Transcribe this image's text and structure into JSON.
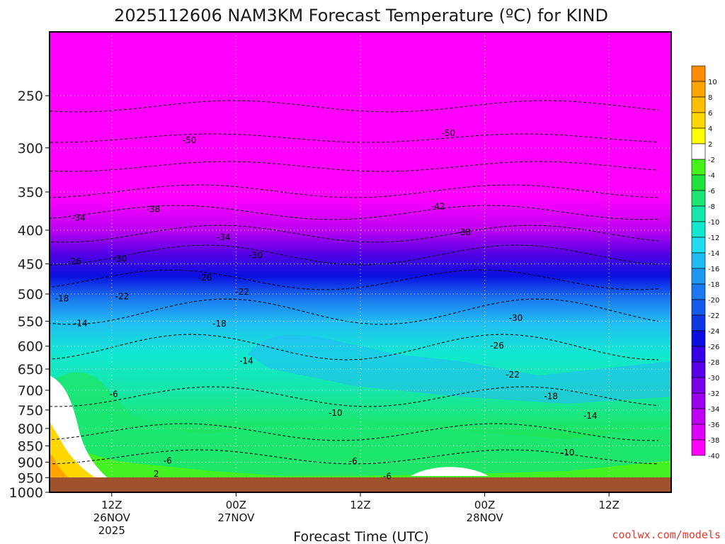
{
  "chart_data": {
    "type": "heatmap",
    "title": "2025112606 NAM3KM Forecast Temperature (ºC) for KIND",
    "xlabel": "Forecast Time (UTC)",
    "ylabel": "",
    "y_scale": "log",
    "y_ticks": [
      250,
      300,
      350,
      400,
      450,
      500,
      550,
      600,
      650,
      700,
      750,
      800,
      850,
      900,
      950,
      1000
    ],
    "ylim": [
      1000,
      200
    ],
    "x_ticks": [
      {
        "line1": "12Z",
        "line2": "26NOV",
        "line3": "2025"
      },
      {
        "line1": "00Z",
        "line2": "27NOV",
        "line3": ""
      },
      {
        "line1": "12Z",
        "line2": "",
        "line3": ""
      },
      {
        "line1": "00Z",
        "line2": "28NOV",
        "line3": ""
      },
      {
        "line1": "12Z",
        "line2": "",
        "line3": ""
      }
    ],
    "x_hours": [
      6,
      18,
      30,
      42,
      54
    ],
    "xlim": [
      0,
      60
    ],
    "grid": true,
    "colorbar": {
      "labels": [
        "10",
        "8",
        "6",
        "4",
        "2",
        "-2",
        "-4",
        "-6",
        "-8",
        "-10",
        "-12",
        "-14",
        "-16",
        "-18",
        "-20",
        "-22",
        "-24",
        "-26",
        "-28",
        "-30",
        "-32",
        "-34",
        "-36",
        "-38",
        "-40"
      ],
      "colors": [
        "#ff8c00",
        "#ffa500",
        "#ffbf00",
        "#ffd700",
        "#ffff00",
        "#ffffff",
        "#46f21c",
        "#20e13e",
        "#1ce671",
        "#16e6a8",
        "#12e8d0",
        "#20ddf0",
        "#21bcf4",
        "#1e98f2",
        "#1b78ee",
        "#155ae8",
        "#0f37e2",
        "#0a0fe0",
        "#3500e6",
        "#5800e6",
        "#7a00ea",
        "#9b00ee",
        "#bd00f2",
        "#dd00f6",
        "#ff00ff"
      ]
    },
    "contour_labels": [
      {
        "text": "-50",
        "hour": 13.5,
        "p": 292
      },
      {
        "text": "-50",
        "hour": 38.5,
        "p": 285
      },
      {
        "text": "-38",
        "hour": 10,
        "p": 372
      },
      {
        "text": "-42",
        "hour": 37.5,
        "p": 368
      },
      {
        "text": "-34",
        "hour": 2.8,
        "p": 383
      },
      {
        "text": "-34",
        "hour": 16.8,
        "p": 410
      },
      {
        "text": "-38",
        "hour": 40,
        "p": 403
      },
      {
        "text": "-30",
        "hour": 6.8,
        "p": 442
      },
      {
        "text": "-30",
        "hour": 19.9,
        "p": 437
      },
      {
        "text": "-26",
        "hour": 2.4,
        "p": 446
      },
      {
        "text": "-26",
        "hour": 15,
        "p": 472
      },
      {
        "text": "-22",
        "hour": 7,
        "p": 504
      },
      {
        "text": "-22",
        "hour": 18.6,
        "p": 496
      },
      {
        "text": "-18",
        "hour": 1.2,
        "p": 508
      },
      {
        "text": "-18",
        "hour": 16.4,
        "p": 555
      },
      {
        "text": "-14",
        "hour": 3,
        "p": 554
      },
      {
        "text": "-14",
        "hour": 19,
        "p": 632
      },
      {
        "text": "-30",
        "hour": 45,
        "p": 544
      },
      {
        "text": "-26",
        "hour": 43.2,
        "p": 599
      },
      {
        "text": "-22",
        "hour": 44.7,
        "p": 663
      },
      {
        "text": "-18",
        "hour": 48.4,
        "p": 715
      },
      {
        "text": "-14",
        "hour": 52.2,
        "p": 765
      },
      {
        "text": "-10",
        "hour": 27.6,
        "p": 758
      },
      {
        "text": "-10",
        "hour": 50,
        "p": 871
      },
      {
        "text": "-6",
        "hour": 6.2,
        "p": 710
      },
      {
        "text": "-6",
        "hour": 11.4,
        "p": 896
      },
      {
        "text": "-6",
        "hour": 29.3,
        "p": 897
      },
      {
        "text": "-6",
        "hour": 32.6,
        "p": 946
      },
      {
        "text": "2",
        "hour": 10.3,
        "p": 938
      }
    ]
  },
  "credit": "coolwx.com/models",
  "colors": {
    "ground": "#a0522d",
    "credit": "#e8372b",
    "frame": "#000000"
  }
}
